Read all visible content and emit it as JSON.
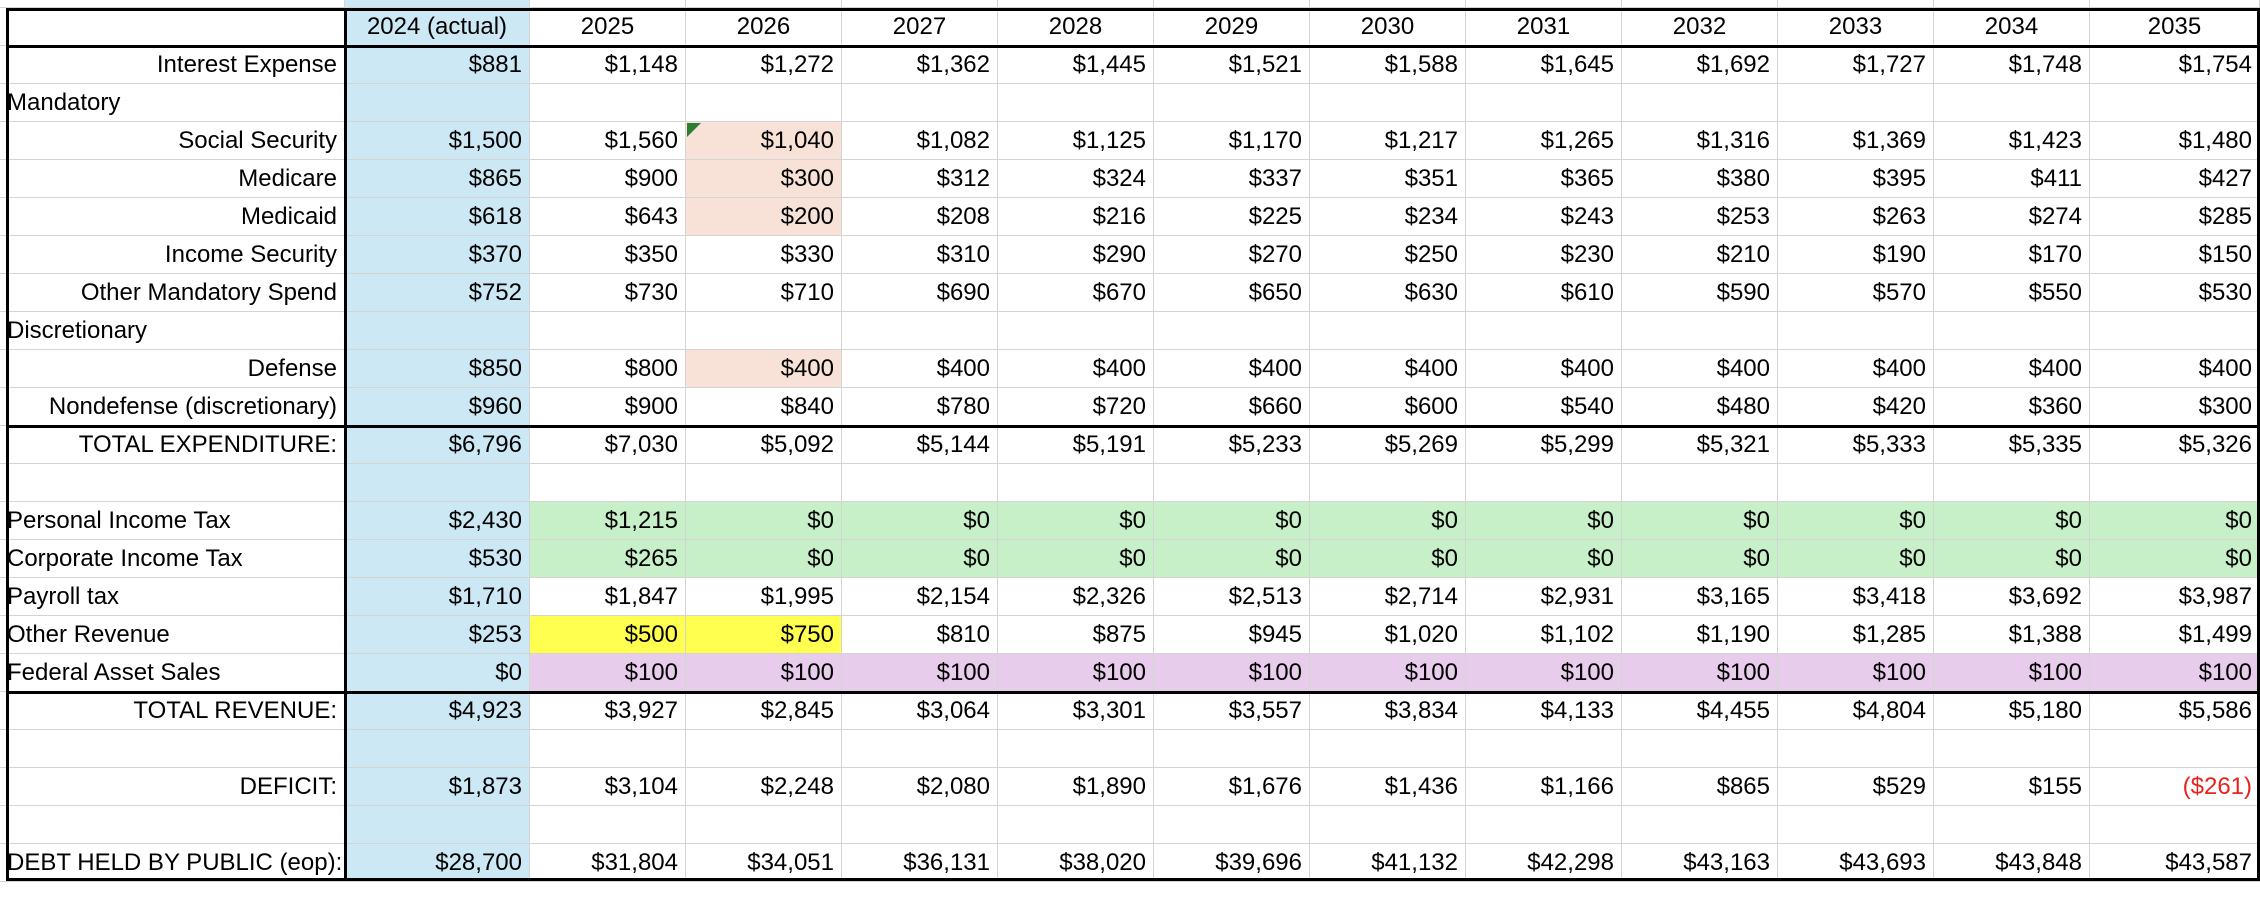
{
  "sheet": {
    "columns": [
      "2024 (actual)",
      "2025",
      "2026",
      "2027",
      "2028",
      "2029",
      "2030",
      "2031",
      "2032",
      "2033",
      "2034",
      "2035"
    ],
    "rows": [
      {
        "label": "",
        "align": "right",
        "values": []
      },
      {
        "label": "Interest Expense",
        "align": "right",
        "values": [
          "$881",
          "$1,148",
          "$1,272",
          "$1,362",
          "$1,445",
          "$1,521",
          "$1,588",
          "$1,645",
          "$1,692",
          "$1,727",
          "$1,748",
          "$1,754"
        ]
      },
      {
        "label": "Mandatory",
        "align": "left",
        "values": []
      },
      {
        "label": "Social Security",
        "align": "right",
        "values": [
          "$1,500",
          "$1,560",
          "$1,040",
          "$1,082",
          "$1,125",
          "$1,170",
          "$1,217",
          "$1,265",
          "$1,316",
          "$1,369",
          "$1,423",
          "$1,480"
        ]
      },
      {
        "label": "Medicare",
        "align": "right",
        "values": [
          "$865",
          "$900",
          "$300",
          "$312",
          "$324",
          "$337",
          "$351",
          "$365",
          "$380",
          "$395",
          "$411",
          "$427"
        ]
      },
      {
        "label": "Medicaid",
        "align": "right",
        "values": [
          "$618",
          "$643",
          "$200",
          "$208",
          "$216",
          "$225",
          "$234",
          "$243",
          "$253",
          "$263",
          "$274",
          "$285"
        ]
      },
      {
        "label": "Income Security",
        "align": "right",
        "values": [
          "$370",
          "$350",
          "$330",
          "$310",
          "$290",
          "$270",
          "$250",
          "$230",
          "$210",
          "$190",
          "$170",
          "$150"
        ]
      },
      {
        "label": "Other Mandatory Spend",
        "align": "right",
        "values": [
          "$752",
          "$730",
          "$710",
          "$690",
          "$670",
          "$650",
          "$630",
          "$610",
          "$590",
          "$570",
          "$550",
          "$530"
        ]
      },
      {
        "label": "Discretionary",
        "align": "left",
        "values": []
      },
      {
        "label": "Defense",
        "align": "right",
        "values": [
          "$850",
          "$800",
          "$400",
          "$400",
          "$400",
          "$400",
          "$400",
          "$400",
          "$400",
          "$400",
          "$400",
          "$400"
        ]
      },
      {
        "label": "Nondefense (discretionary)",
        "align": "right",
        "values": [
          "$960",
          "$900",
          "$840",
          "$780",
          "$720",
          "$660",
          "$600",
          "$540",
          "$480",
          "$420",
          "$360",
          "$300"
        ]
      },
      {
        "label": "TOTAL EXPENDITURE:",
        "align": "right",
        "values": [
          "$6,796",
          "$7,030",
          "$5,092",
          "$5,144",
          "$5,191",
          "$5,233",
          "$5,269",
          "$5,299",
          "$5,321",
          "$5,333",
          "$5,335",
          "$5,326"
        ]
      },
      {
        "label": "",
        "align": "right",
        "values": []
      },
      {
        "label": "Personal Income Tax",
        "align": "left",
        "values": [
          "$2,430",
          "$1,215",
          "$0",
          "$0",
          "$0",
          "$0",
          "$0",
          "$0",
          "$0",
          "$0",
          "$0",
          "$0"
        ]
      },
      {
        "label": "Corporate Income Tax",
        "align": "left",
        "values": [
          "$530",
          "$265",
          "$0",
          "$0",
          "$0",
          "$0",
          "$0",
          "$0",
          "$0",
          "$0",
          "$0",
          "$0"
        ]
      },
      {
        "label": "Payroll tax",
        "align": "left",
        "values": [
          "$1,710",
          "$1,847",
          "$1,995",
          "$2,154",
          "$2,326",
          "$2,513",
          "$2,714",
          "$2,931",
          "$3,165",
          "$3,418",
          "$3,692",
          "$3,987"
        ]
      },
      {
        "label": "Other Revenue",
        "align": "left",
        "values": [
          "$253",
          "$500",
          "$750",
          "$810",
          "$875",
          "$945",
          "$1,020",
          "$1,102",
          "$1,190",
          "$1,285",
          "$1,388",
          "$1,499"
        ]
      },
      {
        "label": "Federal Asset Sales",
        "align": "left",
        "values": [
          "$0",
          "$100",
          "$100",
          "$100",
          "$100",
          "$100",
          "$100",
          "$100",
          "$100",
          "$100",
          "$100",
          "$100"
        ]
      },
      {
        "label": "TOTAL REVENUE:",
        "align": "right",
        "values": [
          "$4,923",
          "$3,927",
          "$2,845",
          "$3,064",
          "$3,301",
          "$3,557",
          "$3,834",
          "$4,133",
          "$4,455",
          "$4,804",
          "$5,180",
          "$5,586"
        ]
      },
      {
        "label": "",
        "align": "right",
        "values": []
      },
      {
        "label": "DEFICIT:",
        "align": "right",
        "values": [
          "$1,873",
          "$3,104",
          "$2,248",
          "$2,080",
          "$1,890",
          "$1,676",
          "$1,436",
          "$1,166",
          "$865",
          "$529",
          "$155",
          "($261)"
        ]
      },
      {
        "label": "",
        "align": "right",
        "values": []
      },
      {
        "label": "DEBT HELD BY PUBLIC (eop):",
        "align": "right",
        "values": [
          "$28,700",
          "$31,804",
          "$34,051",
          "$36,131",
          "$38,020",
          "$39,696",
          "$41,132",
          "$42,298",
          "$43,163",
          "$43,693",
          "$43,848",
          "$43,587"
        ]
      }
    ],
    "colors": {
      "actual_column_fill": "#cde8f5",
      "highlight_peach": "#f8e2d8",
      "highlight_green": "#c8f0c8",
      "highlight_yellow": "#ffff4f",
      "highlight_lavender": "#e8cceb",
      "negative_text": "#e8231c",
      "comment_marker": "#2f7d32"
    }
  }
}
